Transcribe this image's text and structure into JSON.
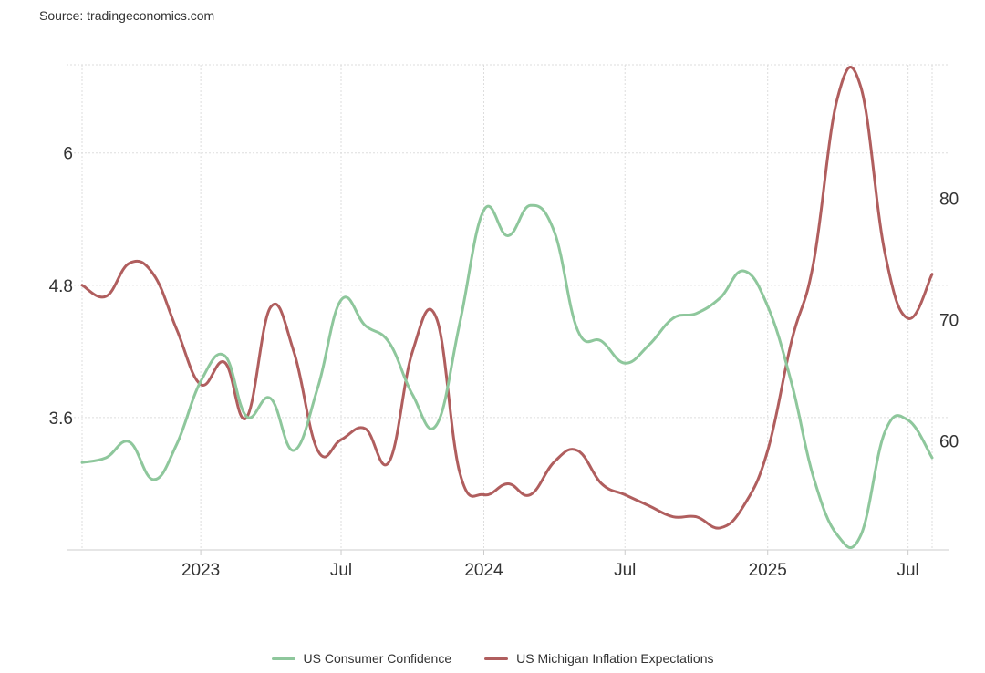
{
  "source_text": "Source: tradingeconomics.com",
  "chart_data": {
    "type": "line",
    "x_ticks": [
      "2023",
      "Jul",
      "2024",
      "Jul",
      "2025",
      "Jul"
    ],
    "x_tick_dates": [
      "2023-01-01",
      "2023-07-01",
      "2024-01-01",
      "2024-07-01",
      "2025-01-01",
      "2025-07-01"
    ],
    "x_range": [
      "2022-08-01",
      "2025-08-01"
    ],
    "y_left": {
      "ticks": [
        "3.6",
        "4.8",
        "6"
      ],
      "tick_values": [
        3.6,
        4.8,
        6
      ],
      "range": [
        2.4,
        6.8
      ]
    },
    "y_right": {
      "ticks": [
        "60",
        "70",
        "80"
      ],
      "tick_values": [
        60,
        70,
        80
      ],
      "range": [
        51,
        91
      ]
    },
    "grid": true,
    "legend_position": "bottom-center",
    "series": [
      {
        "name": "US Michigan Inflation Expectations",
        "axis": "left",
        "color": "#b05e5e",
        "x": [
          "2022-08",
          "2022-09",
          "2022-10",
          "2022-11",
          "2022-12",
          "2023-01",
          "2023-02",
          "2023-03",
          "2023-04",
          "2023-05",
          "2023-06",
          "2023-07",
          "2023-08",
          "2023-09",
          "2023-10",
          "2023-11",
          "2023-12",
          "2024-01",
          "2024-02",
          "2024-03",
          "2024-04",
          "2024-05",
          "2024-06",
          "2024-07",
          "2024-08",
          "2024-09",
          "2024-10",
          "2024-11",
          "2024-12",
          "2025-01",
          "2025-02",
          "2025-03",
          "2025-04",
          "2025-05",
          "2025-06",
          "2025-07",
          "2025-08"
        ],
        "values": [
          4.8,
          4.7,
          5.0,
          4.9,
          4.4,
          3.9,
          4.1,
          3.6,
          4.6,
          4.2,
          3.3,
          3.4,
          3.5,
          3.2,
          4.2,
          4.5,
          3.1,
          2.9,
          3.0,
          2.9,
          3.2,
          3.3,
          3.0,
          2.9,
          2.8,
          2.7,
          2.7,
          2.6,
          2.8,
          3.3,
          4.3,
          5.0,
          6.5,
          6.6,
          5.1,
          4.5,
          4.9
        ]
      },
      {
        "name": "US Consumer Confidence",
        "axis": "right",
        "color": "#8ec79c",
        "x": [
          "2022-08",
          "2022-09",
          "2022-10",
          "2022-11",
          "2022-12",
          "2023-01",
          "2023-02",
          "2023-03",
          "2023-04",
          "2023-05",
          "2023-06",
          "2023-07",
          "2023-08",
          "2023-09",
          "2023-10",
          "2023-11",
          "2023-12",
          "2024-01",
          "2024-02",
          "2024-03",
          "2024-04",
          "2024-05",
          "2024-06",
          "2024-07",
          "2024-08",
          "2024-09",
          "2024-10",
          "2024-11",
          "2024-12",
          "2025-01",
          "2025-02",
          "2025-03",
          "2025-04",
          "2025-05",
          "2025-06",
          "2025-07",
          "2025-08"
        ],
        "values": [
          58.2,
          58.6,
          59.9,
          56.8,
          59.7,
          64.9,
          67.0,
          62.0,
          63.5,
          59.2,
          64.4,
          71.6,
          69.5,
          68.1,
          63.8,
          61.3,
          69.7,
          79.0,
          76.9,
          79.4,
          77.2,
          69.1,
          68.2,
          66.4,
          67.9,
          70.1,
          70.5,
          71.8,
          74.0,
          71.1,
          64.7,
          57.0,
          52.2,
          52.2,
          60.7,
          61.7,
          58.6
        ]
      }
    ]
  },
  "legend": [
    {
      "label": "US Consumer Confidence",
      "color": "#8ec79c"
    },
    {
      "label": "US Michigan Inflation Expectations",
      "color": "#b05e5e"
    }
  ]
}
